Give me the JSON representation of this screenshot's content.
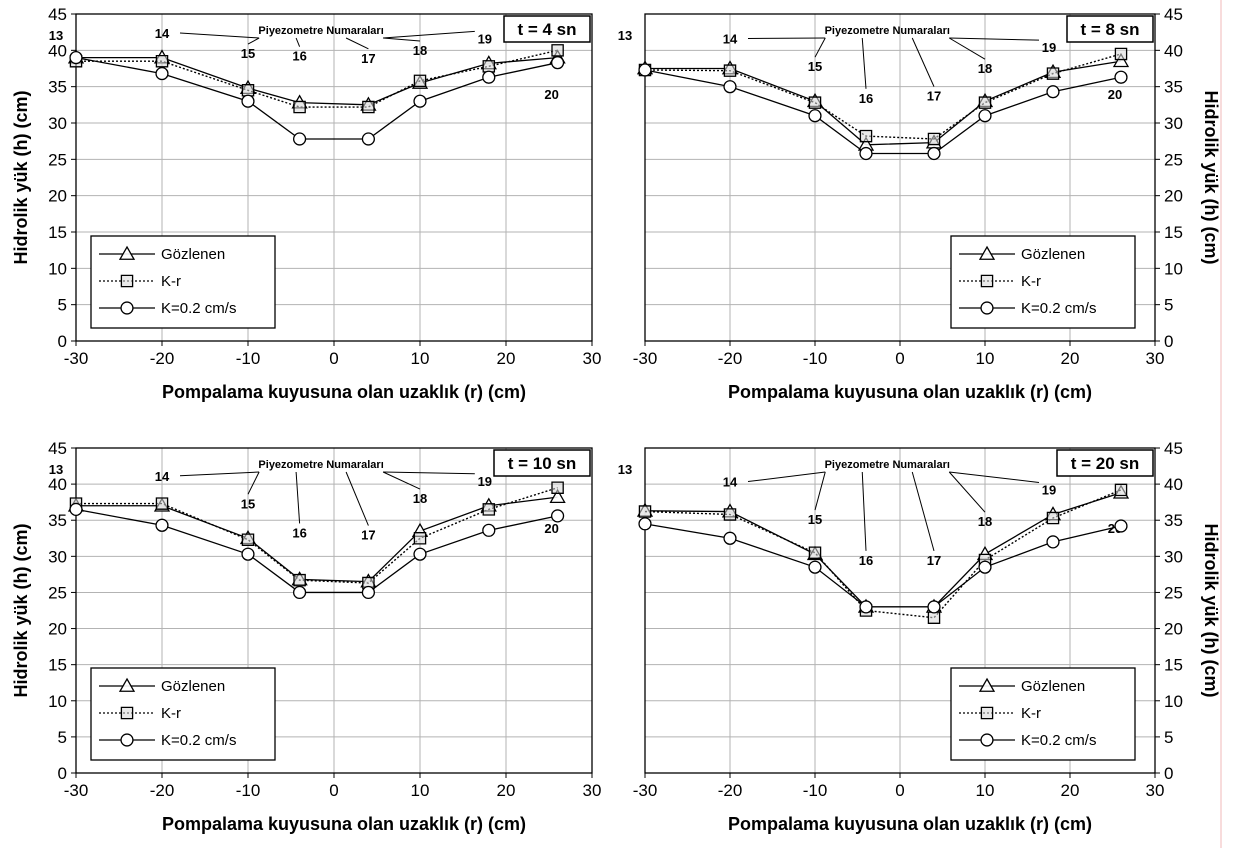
{
  "chart_data": [
    {
      "type": "line",
      "time_label": "t = 4 sn",
      "annotation": "Piyezometre Numaraları",
      "xlabel": "Pompalama kuyusuna olan uzaklık (r) (cm)",
      "ylabel": "Hidrolik yük (h) (cm)",
      "ylabel_side": "left",
      "xlim": [
        -30,
        30
      ],
      "ylim": [
        0,
        45
      ],
      "grid": true,
      "legend_position": "bottom-left",
      "x": [
        -30,
        -20,
        -10,
        -4,
        4,
        10,
        18,
        26
      ],
      "piezometers": [
        "13",
        "14",
        "15",
        "16",
        "17",
        "18",
        "19",
        "20"
      ],
      "series": [
        {
          "name": "Gözlenen",
          "marker": "triangle",
          "line": "solid",
          "values": [
            39,
            39,
            34.8,
            32.8,
            32.5,
            35.5,
            38.2,
            39
          ]
        },
        {
          "name": "K-r",
          "marker": "square",
          "line": "dotted",
          "values": [
            38.5,
            38.5,
            34.5,
            32.2,
            32.2,
            35.8,
            37.8,
            40
          ]
        },
        {
          "name": "K=0.2 cm/s",
          "marker": "circle",
          "line": "solid",
          "values": [
            39,
            36.8,
            33,
            27.8,
            27.8,
            33,
            36.3,
            38.3
          ]
        }
      ]
    },
    {
      "type": "line",
      "time_label": "t = 8 sn",
      "annotation": "Piyezometre Numaraları",
      "xlabel": "Pompalama kuyusuna olan uzaklık (r) (cm)",
      "ylabel": "Hidrolik yük (h) (cm)",
      "ylabel_side": "right",
      "xlim": [
        -30,
        30
      ],
      "ylim": [
        0,
        45
      ],
      "grid": true,
      "legend_position": "bottom-right",
      "x": [
        -30,
        -20,
        -10,
        -4,
        4,
        10,
        18,
        26
      ],
      "piezometers": [
        "13",
        "14",
        "15",
        "16",
        "17",
        "18",
        "19",
        "20"
      ],
      "series": [
        {
          "name": "Gözlenen",
          "marker": "triangle",
          "line": "solid",
          "values": [
            37.5,
            37.5,
            33,
            27,
            27.3,
            33,
            37,
            38.5
          ]
        },
        {
          "name": "K-r",
          "marker": "square",
          "line": "dotted",
          "values": [
            37.3,
            37.2,
            32.8,
            28.2,
            27.8,
            32.8,
            36.8,
            39.5
          ]
        },
        {
          "name": "K=0.2 cm/s",
          "marker": "circle",
          "line": "solid",
          "values": [
            37.3,
            35,
            31,
            25.8,
            25.8,
            31,
            34.3,
            36.3
          ]
        }
      ]
    },
    {
      "type": "line",
      "time_label": "t = 10 sn",
      "annotation": "Piyezometre Numaraları",
      "xlabel": "Pompalama kuyusuna olan uzaklık (r) (cm)",
      "ylabel": "Hidrolik yük (h) (cm)",
      "ylabel_side": "left",
      "xlim": [
        -30,
        30
      ],
      "ylim": [
        0,
        45
      ],
      "grid": true,
      "legend_position": "bottom-left",
      "x": [
        -30,
        -20,
        -10,
        -4,
        4,
        10,
        18,
        26
      ],
      "piezometers": [
        "13",
        "14",
        "15",
        "16",
        "17",
        "18",
        "19",
        "20"
      ],
      "series": [
        {
          "name": "Gözlenen",
          "marker": "triangle",
          "line": "solid",
          "values": [
            37,
            37,
            32.5,
            26.8,
            26.5,
            33.5,
            37,
            38.2
          ]
        },
        {
          "name": "K-r",
          "marker": "square",
          "line": "dotted",
          "values": [
            37.3,
            37.3,
            32.3,
            26.7,
            26.3,
            32.5,
            36.5,
            39.5
          ]
        },
        {
          "name": "K=0.2 cm/s",
          "marker": "circle",
          "line": "solid",
          "values": [
            36.5,
            34.3,
            30.3,
            25,
            25,
            30.3,
            33.6,
            35.6
          ]
        }
      ]
    },
    {
      "type": "line",
      "time_label": "t = 20 sn",
      "annotation": "Piyezometre Numaraları",
      "xlabel": "Pompalama kuyusuna olan uzaklık (r) (cm)",
      "ylabel": "Hidrolik yük (h) (cm)",
      "ylabel_side": "right",
      "xlim": [
        -30,
        30
      ],
      "ylim": [
        0,
        45
      ],
      "grid": true,
      "legend_position": "bottom-right",
      "x": [
        -30,
        -20,
        -10,
        -4,
        4,
        10,
        18,
        26
      ],
      "piezometers": [
        "13",
        "14",
        "15",
        "16",
        "17",
        "18",
        "19",
        "20"
      ],
      "series": [
        {
          "name": "Gözlenen",
          "marker": "triangle",
          "line": "solid",
          "values": [
            36.3,
            36.2,
            30.3,
            23,
            23,
            30.3,
            35.8,
            38.8
          ]
        },
        {
          "name": "K-r",
          "marker": "square",
          "line": "dotted",
          "values": [
            36.2,
            35.8,
            30.5,
            22.5,
            21.5,
            29.5,
            35.3,
            39.2
          ]
        },
        {
          "name": "K=0.2 cm/s",
          "marker": "circle",
          "line": "solid",
          "values": [
            34.5,
            32.5,
            28.5,
            23,
            23,
            28.5,
            32,
            34.2
          ]
        }
      ]
    }
  ],
  "colors": {
    "line": "#000000",
    "marker_fill": "#d9d9d9",
    "grid": "#b3b3b3",
    "background": "#ffffff",
    "edge_rule": "#f0b8b8"
  }
}
